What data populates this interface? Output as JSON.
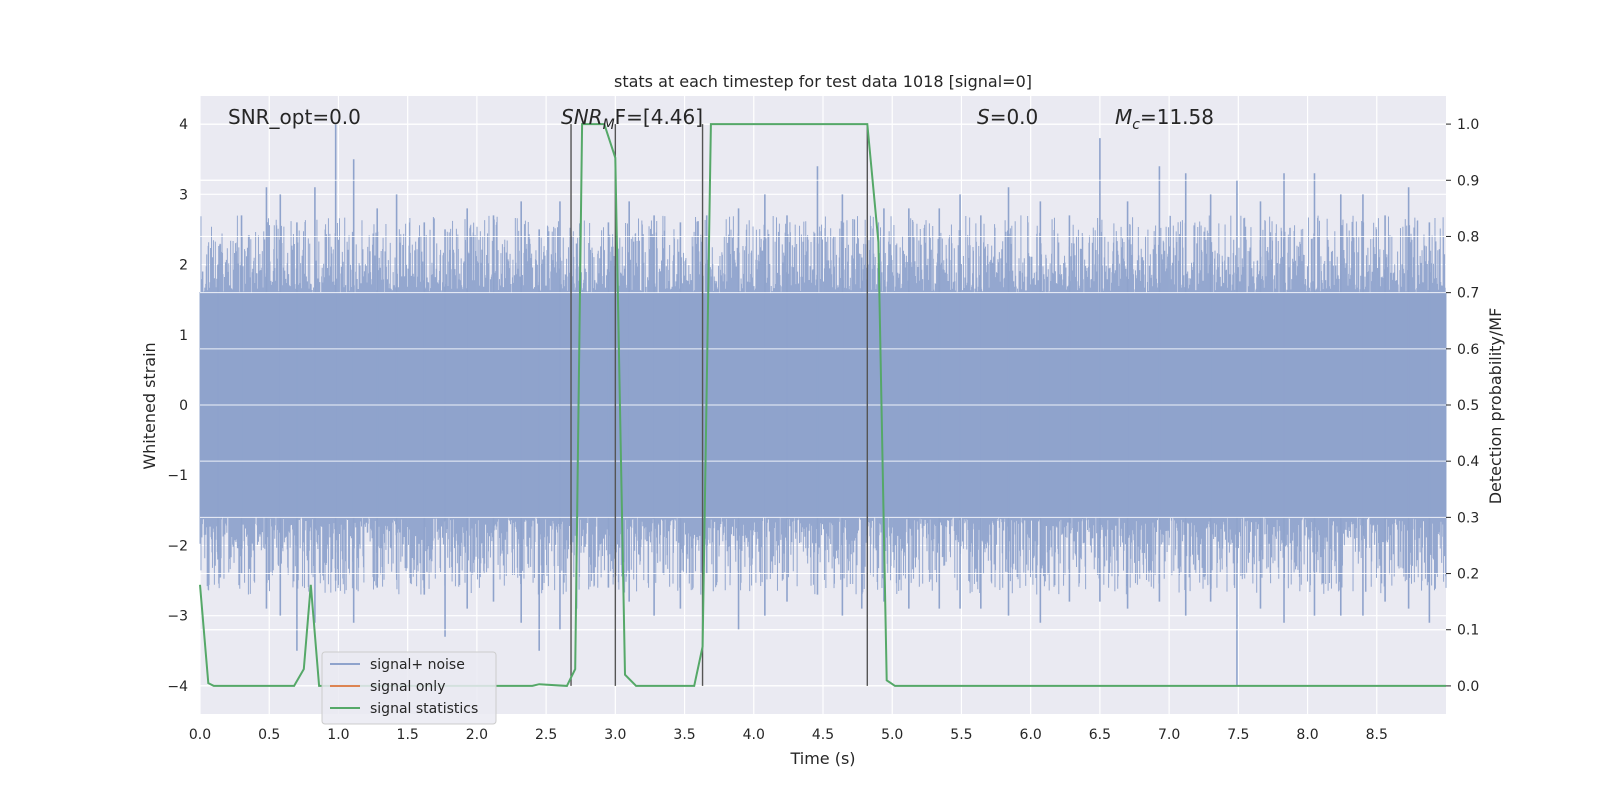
{
  "chart_data": {
    "type": "line",
    "title": "stats at each timestep for test data 1018 [signal=0]",
    "xlabel": "Time (s)",
    "ylabel": "Whitened strain",
    "ylabel_right": "Detection probability/MF",
    "xlim": [
      0.0,
      9.0
    ],
    "ylim": [
      -4.4,
      4.4
    ],
    "ylim_right": [
      -0.05,
      1.05
    ],
    "xticks": [
      "0.0",
      "0.5",
      "1.0",
      "1.5",
      "2.0",
      "2.5",
      "3.0",
      "3.5",
      "4.0",
      "4.5",
      "5.0",
      "5.5",
      "6.0",
      "6.5",
      "7.0",
      "7.5",
      "8.0",
      "8.5"
    ],
    "yticks": [
      "4",
      "3",
      "2",
      "1",
      "0",
      "−1",
      "−2",
      "−3",
      "−4"
    ],
    "yticks_right": [
      "1.0",
      "0.9",
      "0.8",
      "0.7",
      "0.6",
      "0.5",
      "0.4",
      "0.3",
      "0.2",
      "0.1",
      "0.0"
    ],
    "grid": true,
    "legend_position": "lower-left",
    "annotations": {
      "snr_opt": "SNR_opt=0.0",
      "snr_mf_base": "SNR",
      "snr_mf_sub": "M",
      "snr_mf_rest": "F=[4.46]",
      "s_italic": "S",
      "s_rest": "=0.0",
      "mc_italic": "M",
      "mc_sub": "c",
      "mc_rest": "=11.58"
    },
    "vertical_lines_x": [
      2.68,
      3.0,
      3.63,
      4.82
    ],
    "series": [
      {
        "name": "signal+ noise",
        "color": "#8fa3cc",
        "noise_band": [
          -1.6,
          1.6
        ],
        "peaks": [
          [
            0.13,
            2.0,
            -2.2
          ],
          [
            0.3,
            2.7,
            -2.4
          ],
          [
            0.48,
            3.1,
            -2.9
          ],
          [
            0.58,
            3.0,
            -3.0
          ],
          [
            0.7,
            2.6,
            -3.5
          ],
          [
            0.83,
            3.1,
            -3.1
          ],
          [
            0.98,
            4.0,
            -2.5
          ],
          [
            1.11,
            3.5,
            -3.1
          ],
          [
            1.28,
            2.8,
            -2.6
          ],
          [
            1.42,
            3.0,
            -2.4
          ],
          [
            1.62,
            2.6,
            -2.7
          ],
          [
            1.77,
            2.5,
            -3.3
          ],
          [
            1.93,
            2.8,
            -2.9
          ],
          [
            2.12,
            2.7,
            -2.8
          ],
          [
            2.32,
            2.9,
            -3.1
          ],
          [
            2.45,
            2.5,
            -3.5
          ],
          [
            2.6,
            2.9,
            -3.2
          ],
          [
            2.72,
            2.3,
            -2.9
          ],
          [
            2.95,
            2.6,
            -2.6
          ],
          [
            3.1,
            2.9,
            -2.8
          ],
          [
            3.28,
            2.7,
            -3.0
          ],
          [
            3.47,
            2.6,
            -2.9
          ],
          [
            3.66,
            2.7,
            -2.4
          ],
          [
            3.89,
            2.8,
            -3.2
          ],
          [
            4.08,
            3.0,
            -3.0
          ],
          [
            4.24,
            2.7,
            -2.8
          ],
          [
            4.46,
            3.4,
            -2.7
          ],
          [
            4.64,
            3.0,
            -3.0
          ],
          [
            4.78,
            2.1,
            -2.9
          ],
          [
            4.94,
            2.8,
            -2.8
          ],
          [
            5.12,
            2.8,
            -2.9
          ],
          [
            5.34,
            2.8,
            -2.9
          ],
          [
            5.49,
            3.0,
            -2.9
          ],
          [
            5.64,
            2.7,
            -2.9
          ],
          [
            5.84,
            3.1,
            -3.0
          ],
          [
            6.07,
            2.9,
            -3.1
          ],
          [
            6.28,
            2.7,
            -2.8
          ],
          [
            6.5,
            3.8,
            -2.8
          ],
          [
            6.7,
            2.9,
            -2.9
          ],
          [
            6.93,
            3.4,
            -2.8
          ],
          [
            7.12,
            3.3,
            -3.0
          ],
          [
            7.3,
            3.0,
            -2.8
          ],
          [
            7.49,
            3.2,
            -4.0
          ],
          [
            7.66,
            2.9,
            -2.9
          ],
          [
            7.83,
            3.3,
            -3.1
          ],
          [
            8.05,
            3.3,
            -3.0
          ],
          [
            8.24,
            3.0,
            -3.0
          ],
          [
            8.4,
            3.0,
            -3.0
          ],
          [
            8.56,
            2.7,
            -2.8
          ],
          [
            8.73,
            3.1,
            -2.9
          ],
          [
            8.88,
            2.6,
            -3.1
          ]
        ]
      },
      {
        "name": "signal only",
        "color": "#dd8452",
        "x": [
          0.0,
          9.0
        ],
        "y": [
          0.0,
          0.0
        ]
      },
      {
        "name": "signal statistics",
        "color": "#55a868",
        "axis": "right",
        "x": [
          0.0,
          0.06,
          0.1,
          0.2,
          0.68,
          0.75,
          0.8,
          0.86,
          0.95,
          2.4,
          2.45,
          2.65,
          2.71,
          2.76,
          2.92,
          3.0,
          3.07,
          3.15,
          3.57,
          3.63,
          3.69,
          4.82,
          4.9,
          4.96,
          5.02,
          9.0
        ],
        "y": [
          0.18,
          0.005,
          0.0,
          0.0,
          0.0,
          0.03,
          0.18,
          0.0,
          0.0,
          0.0,
          0.003,
          0.0,
          0.03,
          1.0,
          1.0,
          0.94,
          0.02,
          0.0,
          0.0,
          0.07,
          1.0,
          1.0,
          0.79,
          0.01,
          0.0,
          0.0
        ]
      }
    ]
  }
}
